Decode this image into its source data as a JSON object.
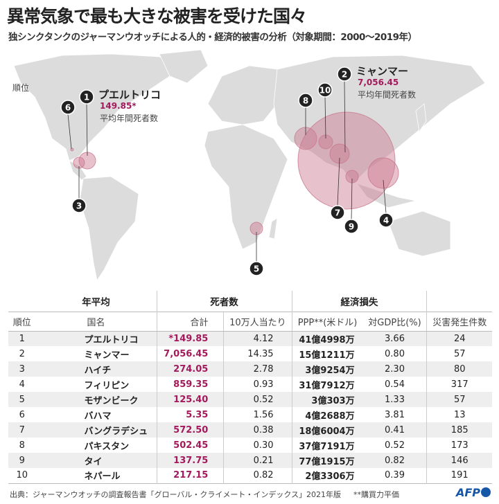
{
  "title": "異常気象で最も大きな被害を受けた国々",
  "subtitle": "独シンクタンクのジャーマンウオッチによる人的・経済的被害の分析（対象期間：2000〜2019年）",
  "map": {
    "rank_label": "順位",
    "callout_1": {
      "name": "プエルトリコ",
      "value": "149.85*",
      "caption": "平均年間死者数"
    },
    "callout_2": {
      "name": "ミャンマー",
      "value": "7,056.45",
      "caption": "平均年間死者数"
    },
    "markers": [
      "1",
      "2",
      "3",
      "4",
      "5",
      "6",
      "7",
      "8",
      "9",
      "10"
    ],
    "bubble_color": "#c9788f"
  },
  "table": {
    "groups": {
      "annual": "年平均",
      "deaths": "死者数",
      "loss": "経済損失"
    },
    "headers": [
      "順位",
      "国名",
      "合計",
      "10万人当たり",
      "PPP**(米ドル)",
      "対GDP比(%)",
      "災害発生件数"
    ],
    "rows": [
      [
        "1",
        "プエルトリコ",
        "*149.85",
        "4.12",
        "41億4998万",
        "3.66",
        "24"
      ],
      [
        "2",
        "ミャンマー",
        "7,056.45",
        "14.35",
        "15億1211万",
        "0.80",
        "57"
      ],
      [
        "3",
        "ハイチ",
        "274.05",
        "2.78",
        "3億9254万",
        "2.30",
        "80"
      ],
      [
        "4",
        "フィリピン",
        "859.35",
        "0.93",
        "31億7912万",
        "0.54",
        "317"
      ],
      [
        "5",
        "モザンビーク",
        "125.40",
        "0.52",
        "3億303万",
        "1.33",
        "57"
      ],
      [
        "6",
        "バハマ",
        "5.35",
        "1.56",
        "4億2688万",
        "3.81",
        "13"
      ],
      [
        "7",
        "バングラデシュ",
        "572.50",
        "0.38",
        "18億6004万",
        "0.41",
        "185"
      ],
      [
        "8",
        "パキスタン",
        "502.45",
        "0.30",
        "37億7191万",
        "0.52",
        "173"
      ],
      [
        "9",
        "タイ",
        "137.75",
        "0.21",
        "77億1915万",
        "0.82",
        "146"
      ],
      [
        "10",
        "ネパール",
        "217.15",
        "0.82",
        "2億3306万",
        "0.39",
        "191"
      ]
    ]
  },
  "footer": {
    "source": "出典：ジャーマンウオッチの調査報告書「グローバル・クライメート・インデックス」2021年版",
    "note": "**購買力平価",
    "logo": "AFP"
  }
}
